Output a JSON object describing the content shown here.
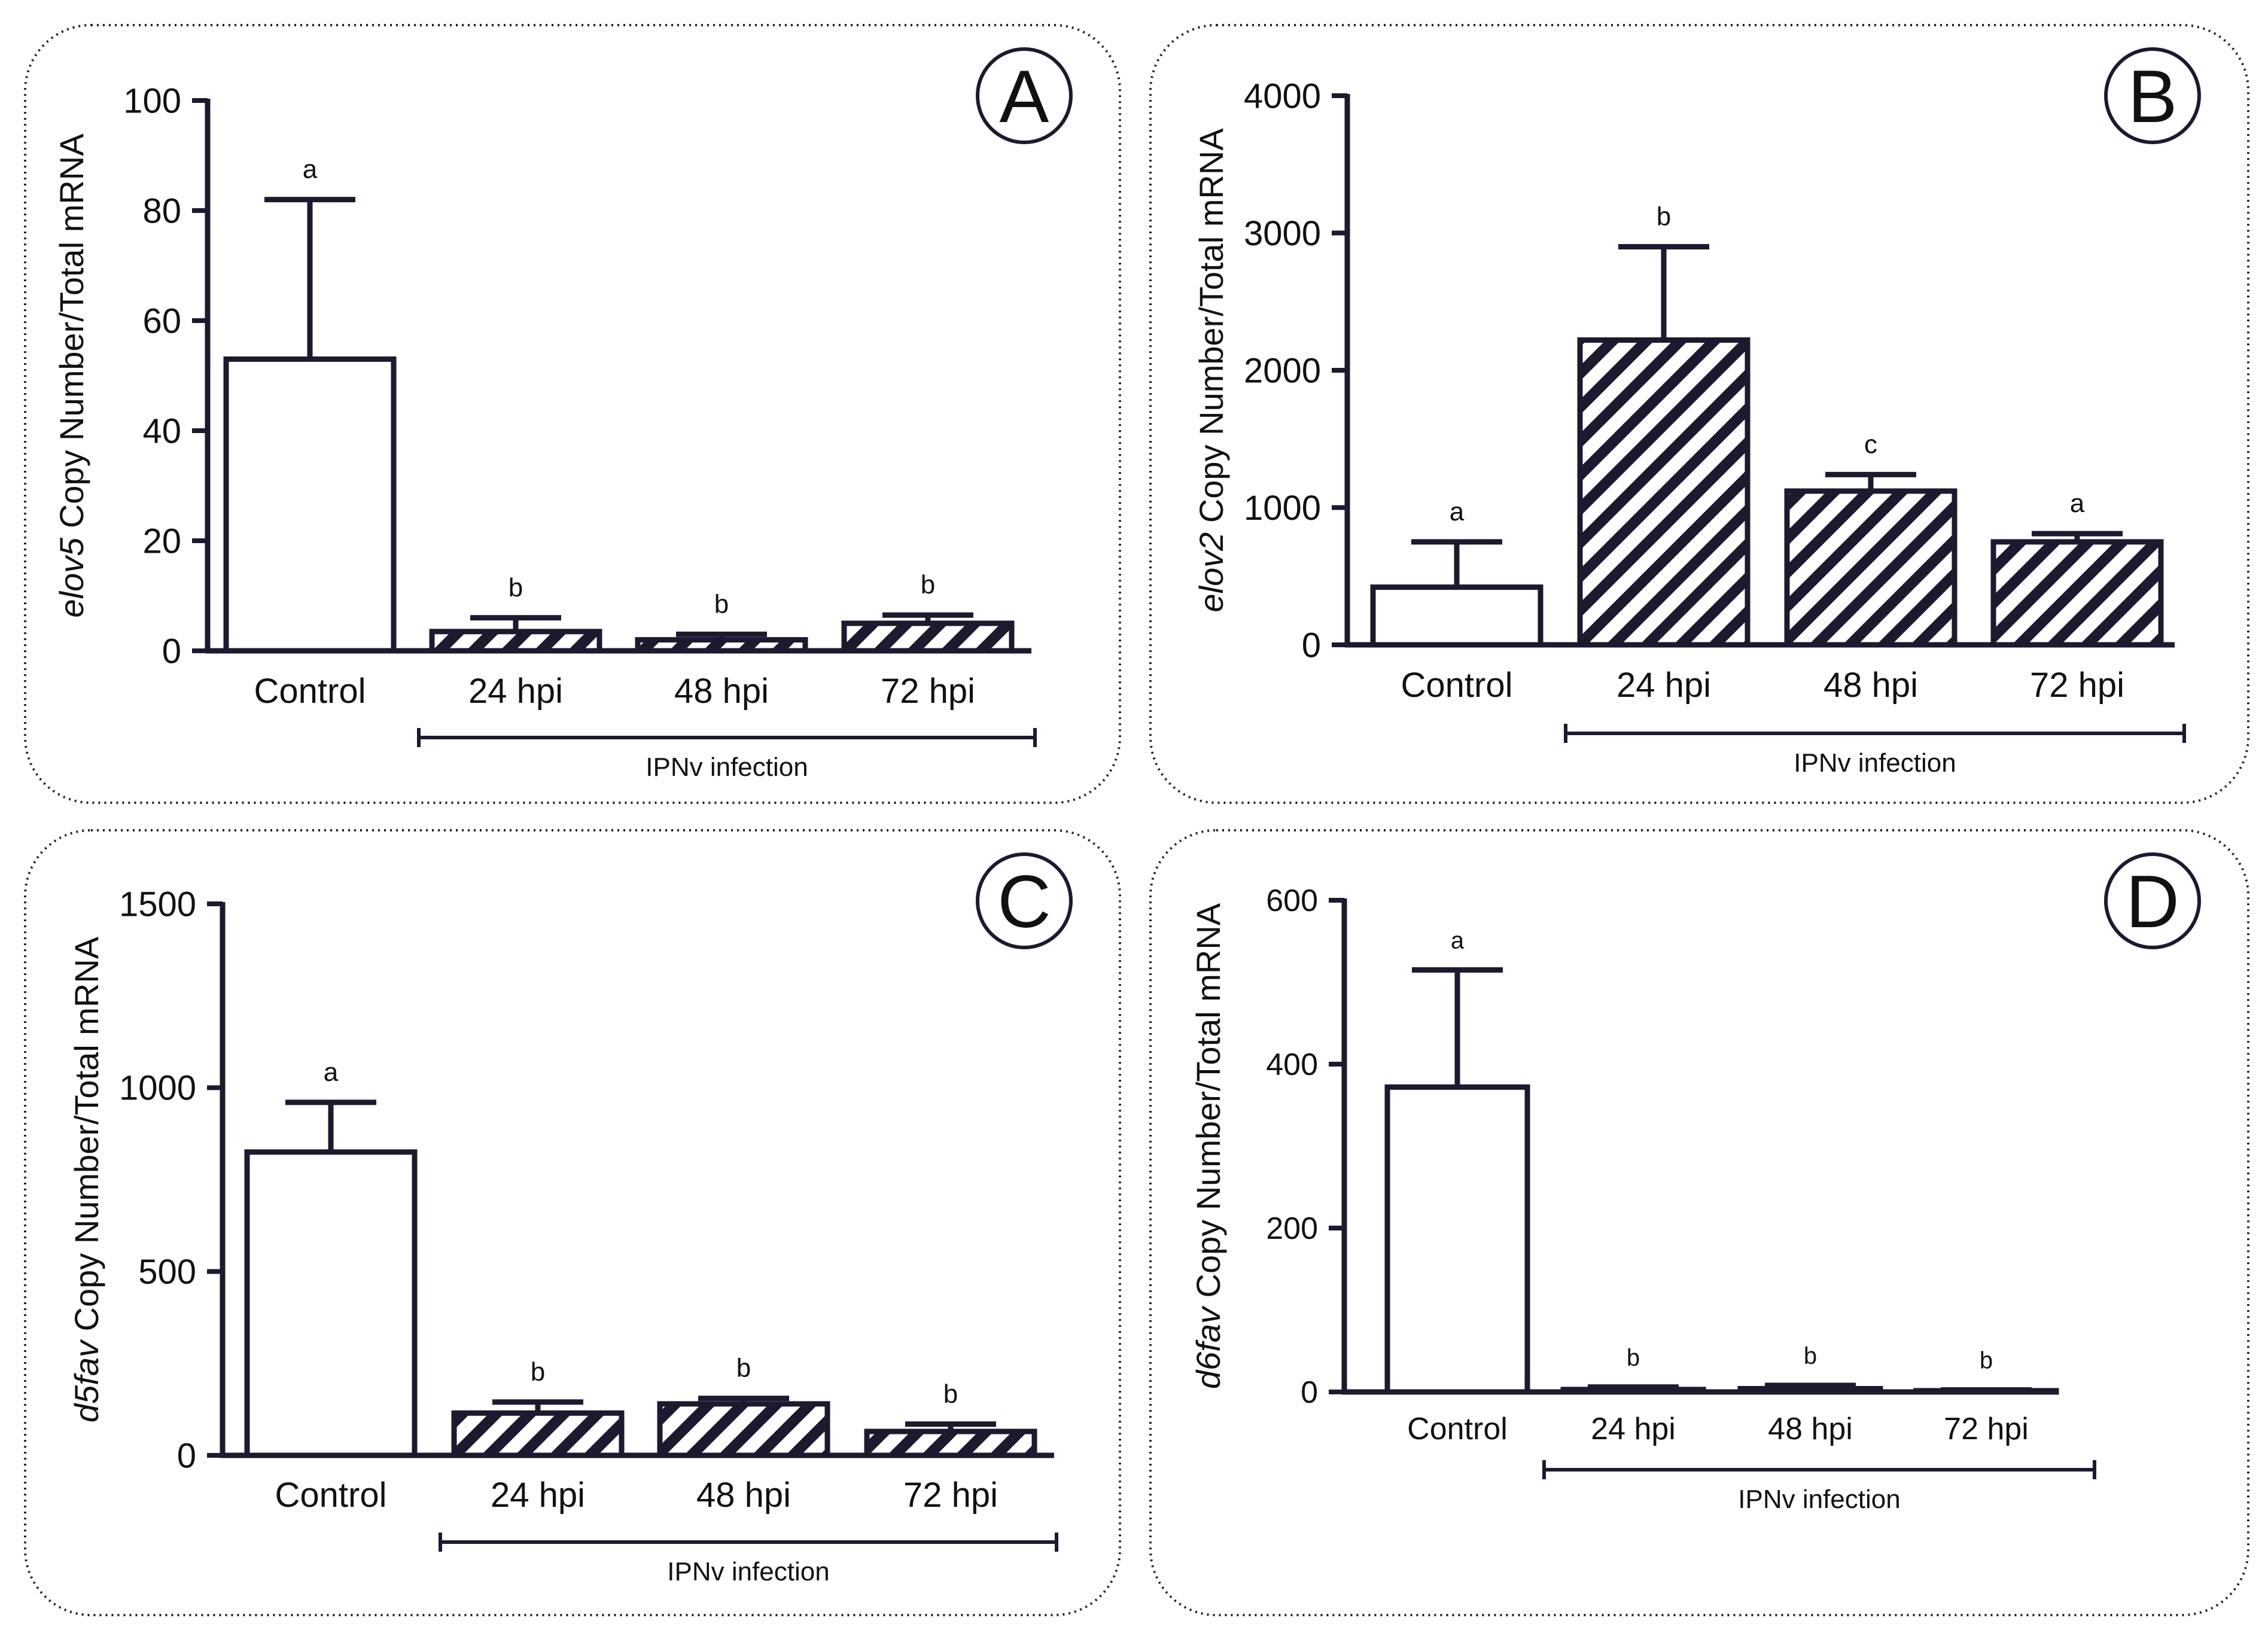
{
  "colors": {
    "ink": "#1b1a2e",
    "panel_border": "#222222",
    "background": "#ffffff"
  },
  "chart_data": [
    {
      "panel_letter": "A",
      "type": "bar",
      "ylabel_gene": "elov5",
      "ylabel_rest": " Copy Number/Total mRNA",
      "categories": [
        "Control",
        "24 hpi",
        "48 hpi",
        "72 hpi"
      ],
      "values": [
        53,
        3.5,
        2,
        5
      ],
      "errors": [
        29,
        2.5,
        1,
        1.5
      ],
      "letters": [
        "a",
        "b",
        "b",
        "b"
      ],
      "patterns": [
        "open",
        "hatched",
        "hatched",
        "hatched"
      ],
      "ylim": [
        0,
        100
      ],
      "yticks": [
        0,
        20,
        40,
        60,
        80,
        100
      ],
      "bracket_label": "IPNv infection"
    },
    {
      "panel_letter": "B",
      "type": "bar",
      "ylabel_gene": "elov2",
      "ylabel_rest": " Copy Number/Total mRNA",
      "categories": [
        "Control",
        "24 hpi",
        "48 hpi",
        "72 hpi"
      ],
      "values": [
        420,
        2220,
        1120,
        750
      ],
      "errors": [
        330,
        680,
        120,
        60
      ],
      "letters": [
        "a",
        "b",
        "c",
        "a"
      ],
      "patterns": [
        "open",
        "hatched",
        "hatched",
        "hatched"
      ],
      "ylim": [
        0,
        4000
      ],
      "yticks": [
        0,
        1000,
        2000,
        3000,
        4000
      ],
      "bracket_label": "IPNv infection"
    },
    {
      "panel_letter": "C",
      "type": "bar",
      "ylabel_gene": "d5fav",
      "ylabel_rest": " Copy Number/Total mRNA",
      "categories": [
        "Control",
        "24 hpi",
        "48 hpi",
        "72 hpi"
      ],
      "values": [
        825,
        115,
        140,
        65
      ],
      "errors": [
        135,
        30,
        15,
        20
      ],
      "letters": [
        "a",
        "b",
        "b",
        "b"
      ],
      "patterns": [
        "open",
        "hatched",
        "hatched",
        "hatched"
      ],
      "ylim": [
        0,
        1500
      ],
      "yticks": [
        0,
        500,
        1000,
        1500
      ],
      "bracket_label": "IPNv infection"
    },
    {
      "panel_letter": "D",
      "type": "bar",
      "ylabel_gene": "d6fav",
      "ylabel_rest": " Copy Number/Total mRNA",
      "categories": [
        "Control",
        "24 hpi",
        "48 hpi",
        "72 hpi"
      ],
      "values": [
        372,
        3,
        4,
        1.5
      ],
      "errors": [
        143,
        3,
        4,
        1
      ],
      "letters": [
        "a",
        "b",
        "b",
        "b"
      ],
      "patterns": [
        "open",
        "hatched",
        "hatched",
        "hatched"
      ],
      "ylim": [
        0,
        600
      ],
      "yticks": [
        0,
        200,
        400,
        600
      ],
      "bracket_label": "IPNv infection"
    }
  ]
}
